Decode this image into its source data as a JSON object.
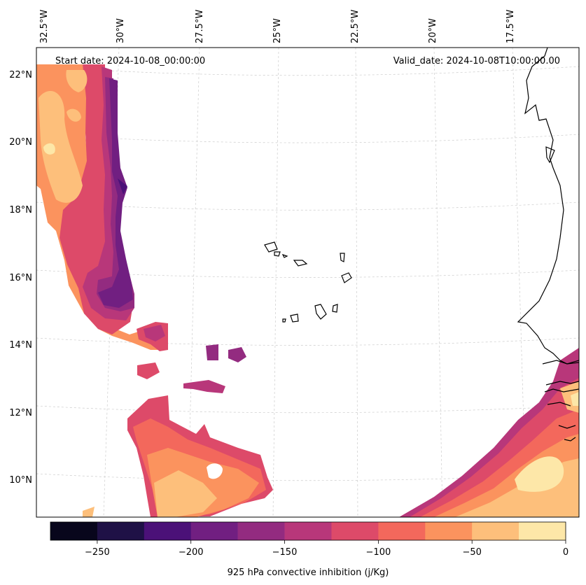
{
  "header": {
    "start_date": "Start date: 2024-10-08_00:00:00",
    "valid_date": "Valid_date: 2024-10-08T10:00:00.00"
  },
  "lon_labels": [
    "32.5°W",
    "30°W",
    "27.5°W",
    "25°W",
    "22.5°W",
    "20°W",
    "17.5°W"
  ],
  "lat_labels": [
    "22°N",
    "20°N",
    "18°N",
    "16°N",
    "14°N",
    "12°N",
    "10°N"
  ],
  "colorbar": {
    "label": "925 hPa convective inhibition (j/Kg)",
    "tick_labels": [
      "−250",
      "−200",
      "−150",
      "−100",
      "−50",
      "0"
    ],
    "levels": [
      -275,
      -250,
      -225,
      -200,
      -175,
      -150,
      -125,
      -100,
      -75,
      -50,
      -25,
      0
    ],
    "colors": [
      "#08061c",
      "#1f1146",
      "#4b1178",
      "#711f81",
      "#932b80",
      "#b8377a",
      "#dd4a69",
      "#f3685c",
      "#fb935e",
      "#fdbf7b",
      "#fde7a8"
    ]
  },
  "legend_colors": {
    "ocean": "#ffffff",
    "coastline": "#000000",
    "gridline": "#cccccc"
  }
}
